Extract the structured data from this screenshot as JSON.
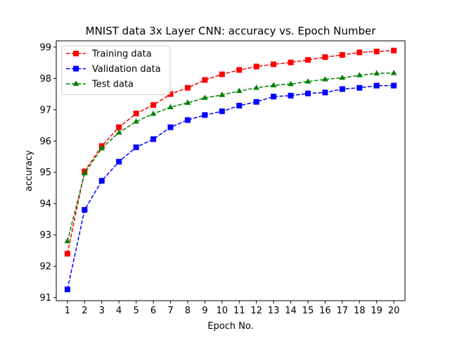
{
  "chart_data": {
    "type": "line",
    "title": "MNIST data 3x Layer CNN: accuracy vs. Epoch Number",
    "xlabel": "Epoch No.",
    "ylabel": "accuracy",
    "x": [
      1,
      2,
      3,
      4,
      5,
      6,
      7,
      8,
      9,
      10,
      11,
      12,
      13,
      14,
      15,
      16,
      17,
      18,
      19,
      20
    ],
    "xlim": [
      0.35,
      20.65
    ],
    "ylim": [
      90.9,
      99.2
    ],
    "yticks": [
      91,
      92,
      93,
      94,
      95,
      96,
      97,
      98,
      99
    ],
    "grid": false,
    "legend_position": "upper-left",
    "series": [
      {
        "name": "Training data",
        "color": "#ff0000",
        "marker": "square",
        "linestyle": "dashed",
        "values": [
          92.4,
          95.03,
          95.84,
          96.44,
          96.88,
          97.15,
          97.5,
          97.7,
          97.95,
          98.13,
          98.27,
          98.38,
          98.45,
          98.51,
          98.59,
          98.68,
          98.75,
          98.83,
          98.86,
          98.89
        ]
      },
      {
        "name": "Validation data",
        "color": "#0000ff",
        "marker": "square",
        "linestyle": "dashed",
        "values": [
          91.26,
          93.8,
          94.73,
          95.34,
          95.8,
          96.06,
          96.44,
          96.67,
          96.83,
          96.95,
          97.13,
          97.25,
          97.42,
          97.45,
          97.52,
          97.55,
          97.66,
          97.7,
          97.77,
          97.77
        ]
      },
      {
        "name": "Test data",
        "color": "#008000",
        "marker": "triangle",
        "linestyle": "dashed",
        "values": [
          92.8,
          94.97,
          95.77,
          96.27,
          96.62,
          96.87,
          97.08,
          97.22,
          97.38,
          97.47,
          97.6,
          97.7,
          97.78,
          97.82,
          97.9,
          97.97,
          98.02,
          98.1,
          98.16,
          98.17
        ]
      }
    ]
  }
}
